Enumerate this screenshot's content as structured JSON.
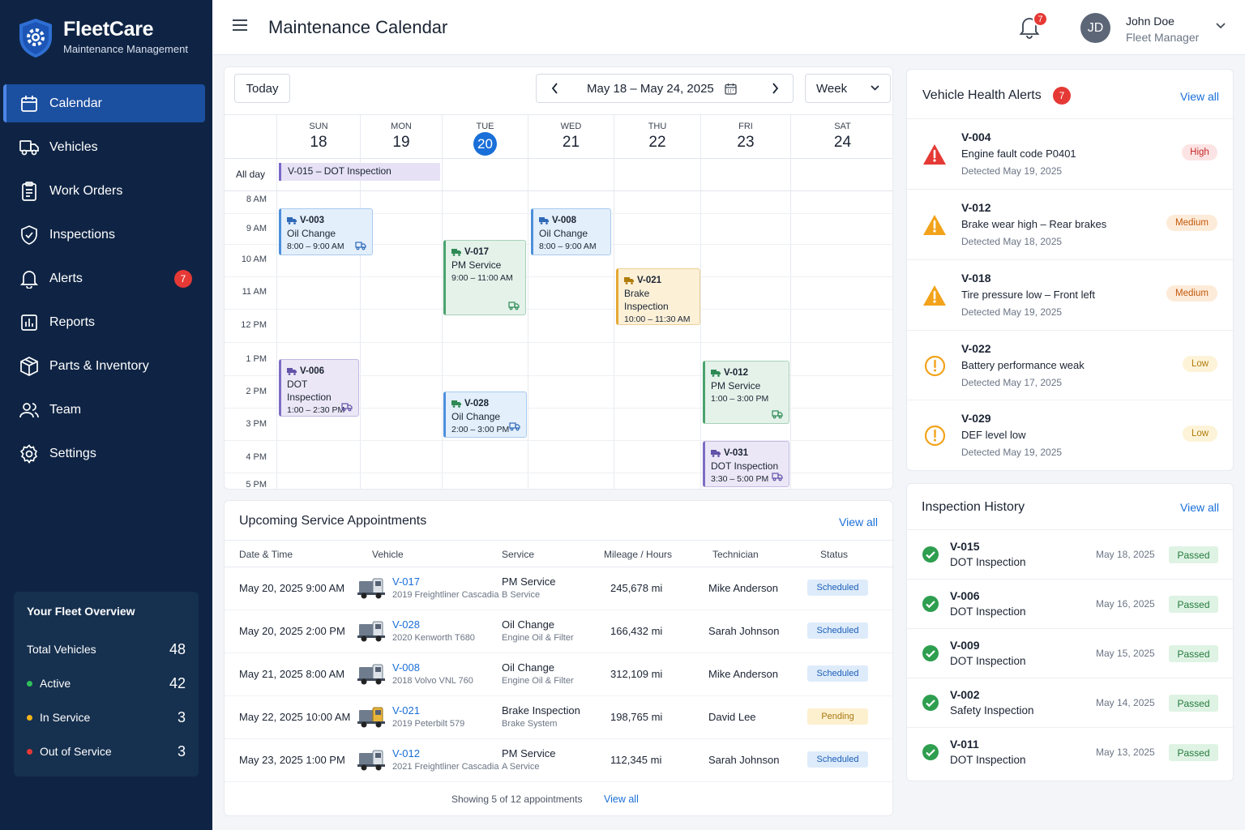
{
  "brand": {
    "name": "FleetCare",
    "subtitle": "Maintenance Management"
  },
  "sidebar": {
    "items": [
      {
        "label": "Calendar",
        "icon": "calendar-icon",
        "active": true
      },
      {
        "label": "Vehicles",
        "icon": "truck-icon"
      },
      {
        "label": "Work Orders",
        "icon": "clipboard-icon"
      },
      {
        "label": "Inspections",
        "icon": "shield-check-icon"
      },
      {
        "label": "Alerts",
        "icon": "bell-icon",
        "badge": "7"
      },
      {
        "label": "Reports",
        "icon": "bar-chart-icon"
      },
      {
        "label": "Parts & Inventory",
        "icon": "box-icon"
      },
      {
        "label": "Team",
        "icon": "users-icon"
      },
      {
        "label": "Settings",
        "icon": "gear-icon"
      }
    ],
    "fleet": {
      "title": "Your Fleet Overview",
      "total_label": "Total Vehicles",
      "total": "48",
      "active_label": "Active",
      "active": "42",
      "service_label": "In Service",
      "service": "3",
      "out_label": "Out of Service",
      "out": "3"
    }
  },
  "header": {
    "title": "Maintenance Calendar",
    "bell_badge": "7",
    "avatar_initials": "JD",
    "user_name": "John Doe",
    "user_role": "Fleet Manager"
  },
  "calendar": {
    "today_label": "Today",
    "range": "May 18 – May 24, 2025",
    "view": "Week",
    "days": [
      {
        "name": "SUN",
        "date": "18"
      },
      {
        "name": "MON",
        "date": "19"
      },
      {
        "name": "TUE",
        "date": "20",
        "today": true
      },
      {
        "name": "WED",
        "date": "21"
      },
      {
        "name": "THU",
        "date": "22"
      },
      {
        "name": "FRI",
        "date": "23"
      },
      {
        "name": "SAT",
        "date": "24"
      }
    ],
    "allday_label": "All day",
    "allday_event": "V-015 – DOT Inspection",
    "times": [
      "8 AM",
      "9 AM",
      "10 AM",
      "11 AM",
      "12 PM",
      "1 PM",
      "2 PM",
      "3 PM",
      "4 PM",
      "5 PM"
    ],
    "events": [
      {
        "id": "V-003",
        "service": "Oil Change",
        "time": "8:00 – 9:00 AM",
        "color": "blue"
      },
      {
        "id": "V-008",
        "service": "Oil Change",
        "time": "8:00 – 9:00 AM",
        "color": "blue"
      },
      {
        "id": "V-017",
        "service": "PM Service",
        "time": "9:00 – 11:00 AM",
        "color": "green"
      },
      {
        "id": "V-021",
        "service": "Brake Inspection",
        "time": "10:00 – 11:30 AM",
        "color": "yellow"
      },
      {
        "id": "V-006",
        "service": "DOT Inspection",
        "time": "1:00 – 2:30 PM",
        "color": "purple"
      },
      {
        "id": "V-028",
        "service": "Oil Change",
        "time": "2:00 – 3:00 PM",
        "color": "blue"
      },
      {
        "id": "V-012",
        "service": "PM Service",
        "time": "1:00 – 3:00 PM",
        "color": "green"
      },
      {
        "id": "V-031",
        "service": "DOT Inspection",
        "time": "3:30 – 5:00 PM",
        "color": "purple"
      }
    ]
  },
  "appointments": {
    "title": "Upcoming Service Appointments",
    "view_all": "View all",
    "columns": [
      "Date & Time",
      "Vehicle",
      "Service",
      "Mileage / Hours",
      "Technician",
      "Status"
    ],
    "rows": [
      {
        "date": "May 20, 2025   9:00 AM",
        "vehicle": "V-017",
        "model": "2019 Freightliner Cascadia",
        "service": "PM Service",
        "sub": "B Service",
        "mileage": "245,678 mi",
        "tech": "Mike Anderson",
        "status": "Scheduled"
      },
      {
        "date": "May 20, 2025   2:00 PM",
        "vehicle": "V-028",
        "model": "2020 Kenworth T680",
        "service": "Oil Change",
        "sub": "Engine Oil & Filter",
        "mileage": "166,432 mi",
        "tech": "Sarah Johnson",
        "status": "Scheduled"
      },
      {
        "date": "May 21, 2025   8:00 AM",
        "vehicle": "V-008",
        "model": "2018 Volvo VNL 760",
        "service": "Oil Change",
        "sub": "Engine Oil & Filter",
        "mileage": "312,109 mi",
        "tech": "Mike Anderson",
        "status": "Scheduled"
      },
      {
        "date": "May 22, 2025   10:00 AM",
        "vehicle": "V-021",
        "model": "2019 Peterbilt 579",
        "service": "Brake Inspection",
        "sub": "Brake System",
        "mileage": "198,765 mi",
        "tech": "David Lee",
        "status": "Pending"
      },
      {
        "date": "May 23, 2025   1:00 PM",
        "vehicle": "V-012",
        "model": "2021 Freightliner Cascadia",
        "service": "PM Service",
        "sub": "A Service",
        "mileage": "112,345 mi",
        "tech": "Sarah Johnson",
        "status": "Scheduled"
      }
    ],
    "footer": "Showing 5 of 12 appointments",
    "footer_link": "View all"
  },
  "alerts": {
    "title": "Vehicle Health Alerts",
    "badge": "7",
    "view_all": "View all",
    "items": [
      {
        "id": "V-004",
        "msg": "Engine fault code P0401",
        "date": "Detected May 19, 2025",
        "severity": "High"
      },
      {
        "id": "V-012",
        "msg": "Brake wear high – Rear brakes",
        "date": "Detected May 18, 2025",
        "severity": "Medium"
      },
      {
        "id": "V-018",
        "msg": "Tire pressure low – Front left",
        "date": "Detected May 19, 2025",
        "severity": "Medium"
      },
      {
        "id": "V-022",
        "msg": "Battery performance weak",
        "date": "Detected May 17, 2025",
        "severity": "Low"
      },
      {
        "id": "V-029",
        "msg": "DEF level low",
        "date": "Detected May 19, 2025",
        "severity": "Low"
      }
    ]
  },
  "inspections": {
    "title": "Inspection History",
    "view_all": "View all",
    "items": [
      {
        "id": "V-015",
        "type": "DOT Inspection",
        "date": "May 18, 2025",
        "status": "Passed"
      },
      {
        "id": "V-006",
        "type": "DOT Inspection",
        "date": "May 16, 2025",
        "status": "Passed"
      },
      {
        "id": "V-009",
        "type": "DOT Inspection",
        "date": "May 15, 2025",
        "status": "Passed"
      },
      {
        "id": "V-002",
        "type": "Safety Inspection",
        "date": "May 14, 2025",
        "status": "Passed"
      },
      {
        "id": "V-011",
        "type": "DOT Inspection",
        "date": "May 13, 2025",
        "status": "Passed"
      }
    ]
  },
  "colors": {
    "sidebar": "#0f2444",
    "accent": "#1a6fd8",
    "danger": "#e53935",
    "success": "#2e9e4f",
    "warning": "#f2a31b"
  }
}
